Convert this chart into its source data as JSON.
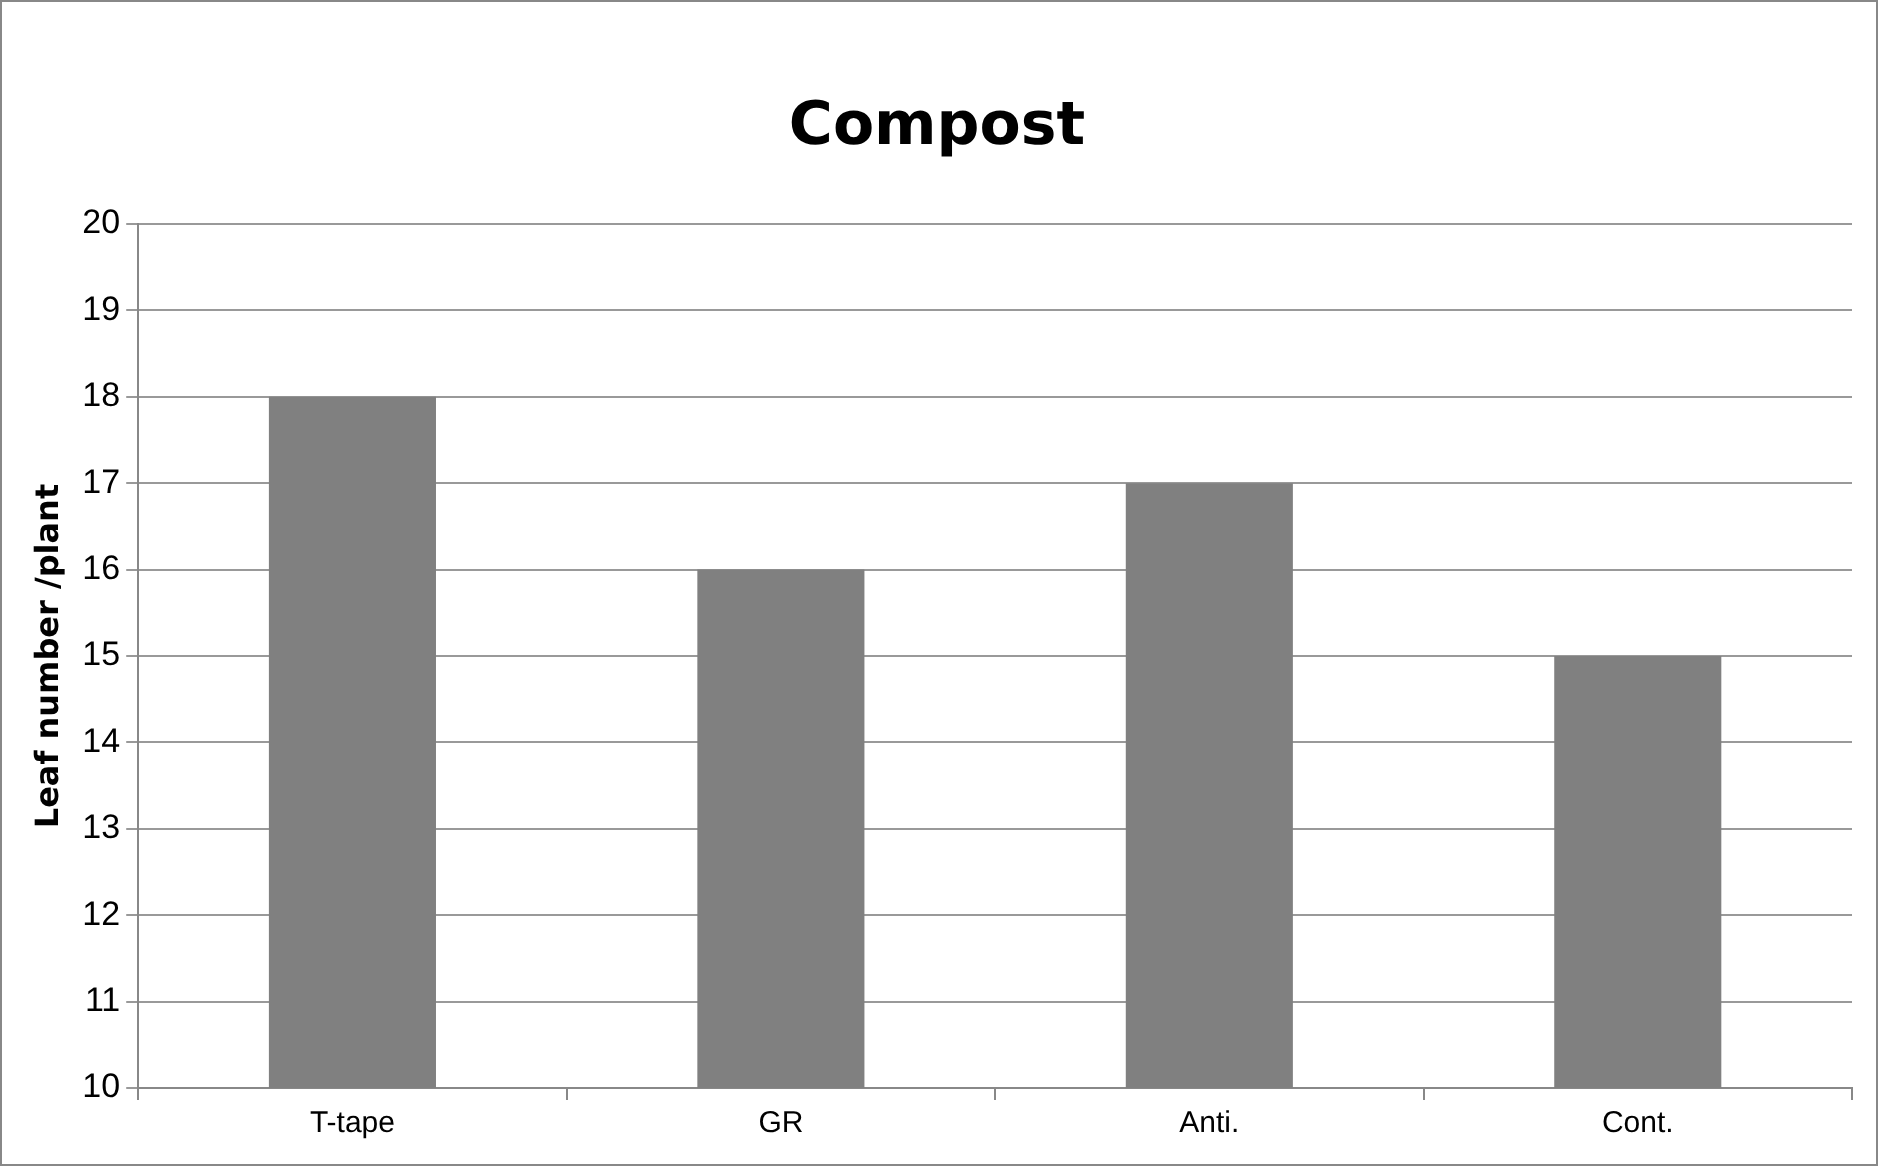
{
  "chart_data": {
    "type": "bar",
    "title": "Compost",
    "ylabel": "Leaf number /plant",
    "categories": [
      "T-tape",
      "GR",
      "Anti.",
      "Cont."
    ],
    "values": [
      18,
      16,
      17,
      15
    ],
    "color": "#808080",
    "ylim": [
      10,
      20
    ],
    "yticks": [
      10,
      11,
      12,
      13,
      14,
      15,
      16,
      17,
      18,
      19,
      20
    ],
    "grid": "y"
  }
}
